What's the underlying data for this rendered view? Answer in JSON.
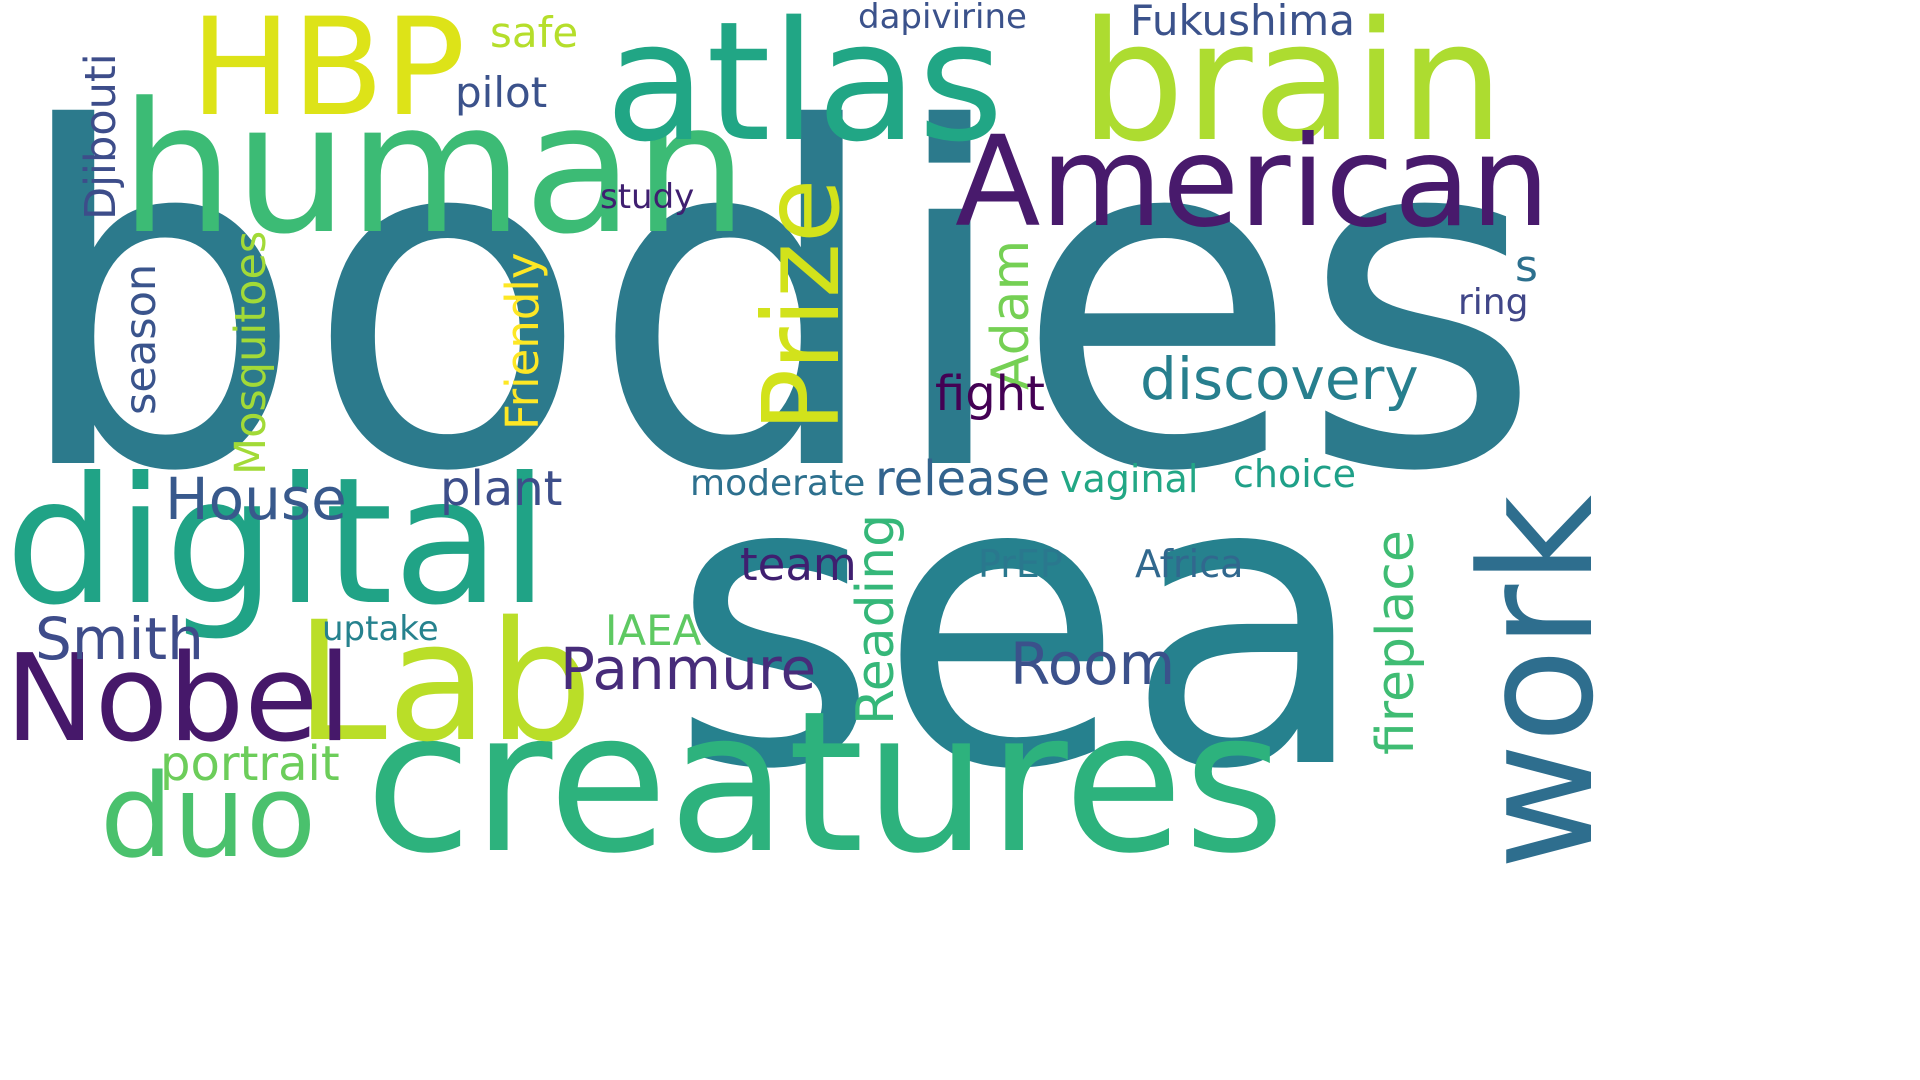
{
  "words": [
    {
      "text": "bodies",
      "color": "#2c7a8c",
      "rotated": false
    },
    {
      "text": "sea",
      "color": "#26818e",
      "rotated": false
    },
    {
      "text": "creatures",
      "color": "#2db27d",
      "rotated": false
    },
    {
      "text": "human",
      "color": "#3cbb75",
      "rotated": false
    },
    {
      "text": "atlas",
      "color": "#21a685",
      "rotated": false
    },
    {
      "text": "brain",
      "color": "#addc30",
      "rotated": false
    },
    {
      "text": "digital",
      "color": "#20a386",
      "rotated": false
    },
    {
      "text": "HBP",
      "color": "#dde318",
      "rotated": false
    },
    {
      "text": "American",
      "color": "#481a6c",
      "rotated": false
    },
    {
      "text": "Lab",
      "color": "#bade28",
      "rotated": false
    },
    {
      "text": "work",
      "color": "#2e6e8e",
      "rotated": true
    },
    {
      "text": "Nobel",
      "color": "#46186a",
      "rotated": false
    },
    {
      "text": "duo",
      "color": "#4ac16d",
      "rotated": false
    },
    {
      "text": "Prize",
      "color": "#d2e21b",
      "rotated": true
    },
    {
      "text": "discovery",
      "color": "#277f8e",
      "rotated": false
    },
    {
      "text": "House",
      "color": "#38598c",
      "rotated": false
    },
    {
      "text": "Panmure",
      "color": "#472c7a",
      "rotated": false
    },
    {
      "text": "Room",
      "color": "#3b518b",
      "rotated": false
    },
    {
      "text": "Smith",
      "color": "#3e4c8a",
      "rotated": false
    },
    {
      "text": "Reading",
      "color": "#35b779",
      "rotated": true
    },
    {
      "text": "fireplace",
      "color": "#3fbc73",
      "rotated": true
    },
    {
      "text": "Adam",
      "color": "#75d054",
      "rotated": true
    },
    {
      "text": "release",
      "color": "#33638d",
      "rotated": false
    },
    {
      "text": "portrait",
      "color": "#6ccd5a",
      "rotated": false
    },
    {
      "text": "fight",
      "color": "#440154",
      "rotated": false
    },
    {
      "text": "plant",
      "color": "#3d4e8a",
      "rotated": false
    },
    {
      "text": "team",
      "color": "#3f1f70",
      "rotated": false
    },
    {
      "text": "Friendly",
      "color": "#fde725",
      "rotated": true
    },
    {
      "text": "Mosquitoes",
      "color": "#a2da37",
      "rotated": true
    },
    {
      "text": "season",
      "color": "#3a548c",
      "rotated": true
    },
    {
      "text": "Djibouti",
      "color": "#3d4d8a",
      "rotated": true
    },
    {
      "text": "Fukushima",
      "color": "#3b528b",
      "rotated": false
    },
    {
      "text": "pilot",
      "color": "#3b528b",
      "rotated": false
    },
    {
      "text": "safe",
      "color": "#b5de2b",
      "rotated": false
    },
    {
      "text": "IAEA",
      "color": "#5ec962",
      "rotated": false
    },
    {
      "text": "Africa",
      "color": "#31688e",
      "rotated": false
    },
    {
      "text": "PrEP",
      "color": "#2a788e",
      "rotated": false
    },
    {
      "text": "vaginal",
      "color": "#22a785",
      "rotated": false
    },
    {
      "text": "choice",
      "color": "#1fa088",
      "rotated": false
    },
    {
      "text": "moderate",
      "color": "#2d708e",
      "rotated": false
    },
    {
      "text": "uptake",
      "color": "#26828e",
      "rotated": false
    },
    {
      "text": "study",
      "color": "#3f1f70",
      "rotated": false
    },
    {
      "text": "dapivirine",
      "color": "#3b528b",
      "rotated": false
    },
    {
      "text": "ring",
      "color": "#404688",
      "rotated": false
    },
    {
      "text": "s",
      "color": "#2d708e",
      "rotated": false
    }
  ]
}
